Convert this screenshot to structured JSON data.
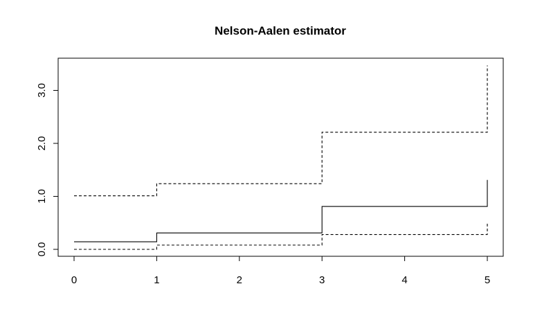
{
  "chart_data": {
    "type": "line",
    "title": "Nelson-Aalen estimator",
    "xlabel": "",
    "ylabel": "",
    "xlim": [
      0,
      5
    ],
    "ylim": [
      0,
      3.5
    ],
    "x_ticks": [
      0,
      1,
      2,
      3,
      4,
      5
    ],
    "x_tick_labels": [
      "0",
      "1",
      "2",
      "3",
      "4",
      "5"
    ],
    "y_ticks": [
      0,
      1,
      2,
      3
    ],
    "y_tick_labels": [
      "0.0",
      "1.0",
      "2.0",
      "3.0"
    ],
    "grid": false,
    "step": true,
    "series": [
      {
        "style": "solid",
        "x": [
          0,
          1,
          3,
          5,
          5
        ],
        "y": [
          0.143,
          0.31,
          0.81,
          0.81,
          1.31
        ]
      },
      {
        "style": "dashed",
        "x": [
          0,
          1,
          3,
          5,
          5
        ],
        "y": [
          1.01,
          1.24,
          2.21,
          2.21,
          3.47
        ]
      },
      {
        "style": "dashed",
        "x": [
          0,
          1,
          3,
          5,
          5
        ],
        "y": [
          0.0,
          0.08,
          0.28,
          0.28,
          0.52
        ]
      }
    ]
  }
}
